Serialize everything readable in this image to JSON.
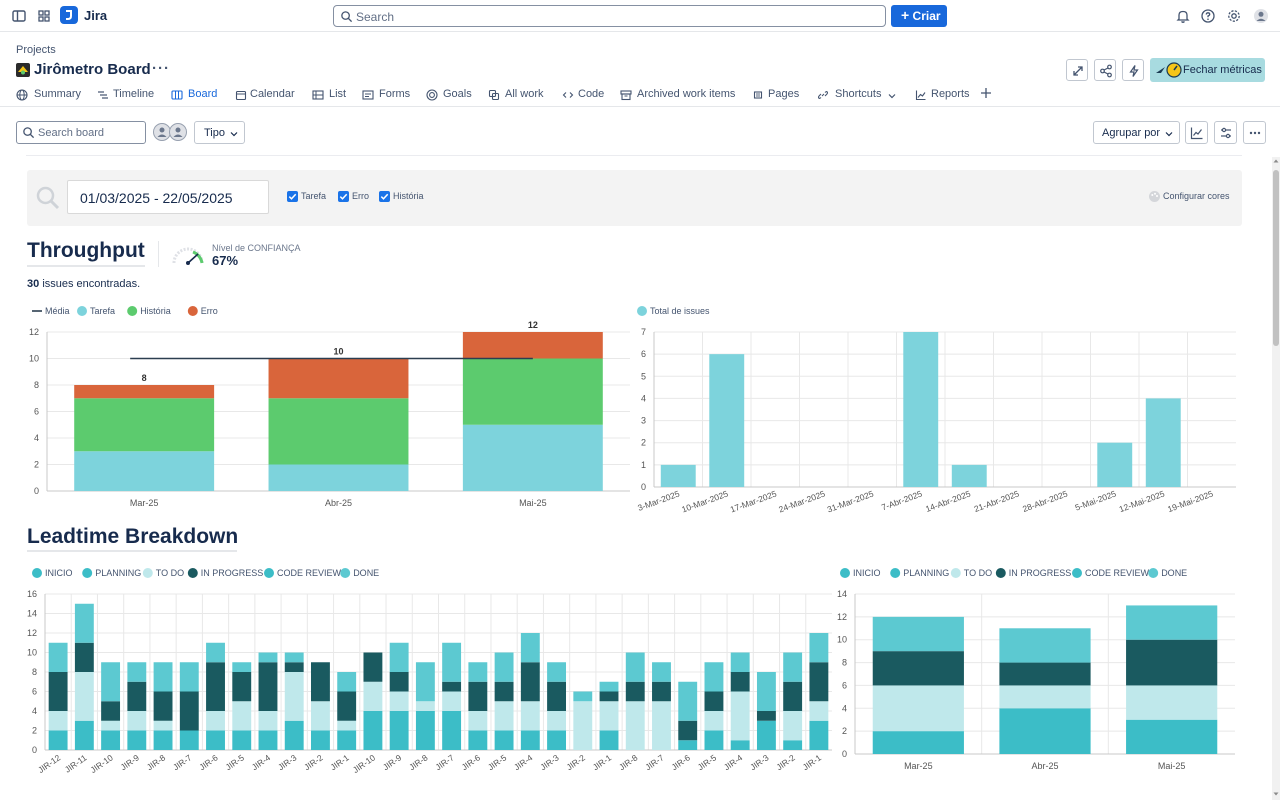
{
  "topbar": {
    "app_name": "Jira",
    "search_placeholder": "Search",
    "create_label": "Criar",
    "icons": [
      "sidebar-toggle-icon",
      "app-switcher-icon",
      "notifications-icon",
      "help-icon",
      "settings-icon",
      "profile-icon"
    ]
  },
  "project": {
    "breadcrumb": "Projects",
    "title": "Jirômetro Board",
    "more": "···",
    "fechar_label": "Fechar métricas"
  },
  "tabs": [
    {
      "label": "Summary",
      "icon": "globe-icon"
    },
    {
      "label": "Timeline",
      "icon": "timeline-icon"
    },
    {
      "label": "Board",
      "icon": "board-icon",
      "active": true
    },
    {
      "label": "Calendar",
      "icon": "calendar-icon"
    },
    {
      "label": "List",
      "icon": "list-icon"
    },
    {
      "label": "Forms",
      "icon": "forms-icon"
    },
    {
      "label": "Goals",
      "icon": "goals-icon"
    },
    {
      "label": "All work",
      "icon": "all-work-icon"
    },
    {
      "label": "Code",
      "icon": "code-icon"
    },
    {
      "label": "Archived work items",
      "icon": "archive-icon"
    },
    {
      "label": "Pages",
      "icon": "pages-icon"
    },
    {
      "label": "Shortcuts",
      "icon": "link-icon"
    },
    {
      "label": "Reports",
      "icon": "reports-icon"
    }
  ],
  "board": {
    "search_placeholder": "Search board",
    "tipo_label": "Tipo",
    "agrupar_label": "Agrupar por"
  },
  "filter": {
    "date_range": "01/03/2025 - 22/05/2025",
    "checkboxes": [
      {
        "label": "Tarefa",
        "checked": true
      },
      {
        "label": "Erro",
        "checked": true
      },
      {
        "label": "História",
        "checked": true
      }
    ],
    "configurar": "Configurar cores"
  },
  "throughput": {
    "title": "Throughput",
    "confidence_label": "Nível de CONFIANÇA",
    "confidence_value": "67%",
    "issues_count": "30",
    "issues_suffix": "issues encontradas."
  },
  "leadtime": {
    "title": "Leadtime Breakdown"
  },
  "colors": {
    "tarefa": "#7dd3dc",
    "historia": "#5ccb6e",
    "erro": "#d9653b",
    "media": "#2c3e50",
    "total": "#7dd3dc",
    "inicio": "#3cbdc7",
    "planning": "#3cbdc7",
    "todo": "#bfe8eb",
    "inprogress": "#1a5a60",
    "codereview": "#3cbdc7",
    "done": "#5cc9d1",
    "brand": "#1868db"
  },
  "chart_data": [
    {
      "type": "bar",
      "stacked": true,
      "categories": [
        "Mar-25",
        "Abr-25",
        "Mai-25"
      ],
      "series": [
        {
          "name": "Tarefa",
          "values": [
            3,
            2,
            5
          ]
        },
        {
          "name": "História",
          "values": [
            4,
            5,
            5
          ]
        },
        {
          "name": "Erro",
          "values": [
            1,
            3,
            2
          ]
        }
      ],
      "line": {
        "name": "Média",
        "value": 10
      },
      "totals": [
        8,
        10,
        12
      ],
      "ylim": [
        0,
        12
      ],
      "yticks": [
        0,
        2,
        4,
        6,
        8,
        10,
        12
      ],
      "legend": "top-left"
    },
    {
      "type": "bar",
      "categories": [
        "3-Mar-2025",
        "10-Mar-2025",
        "17-Mar-2025",
        "24-Mar-2025",
        "31-Mar-2025",
        "7-Abr-2025",
        "14-Abr-2025",
        "21-Abr-2025",
        "28-Abr-2025",
        "5-Mai-2025",
        "12-Mai-2025",
        "19-Mai-2025"
      ],
      "series": [
        {
          "name": "Total de issues",
          "values": [
            1,
            6,
            0,
            0,
            0,
            7,
            1,
            0,
            0,
            2,
            4,
            0
          ]
        }
      ],
      "ylim": [
        0,
        7
      ],
      "yticks": [
        0,
        1,
        2,
        3,
        4,
        5,
        6,
        7
      ],
      "legend": "top-left"
    },
    {
      "type": "bar",
      "stacked": true,
      "legend_items": [
        "INICIO",
        "PLANNING",
        "TO DO",
        "IN PROGRESS",
        "CODE REVIEW",
        "DONE"
      ],
      "categories": [
        "JIR-12",
        "JIR-11",
        "JIR-10",
        "JIR-9",
        "JIR-8",
        "JIR-7",
        "JIR-6",
        "JIR-5",
        "JIR-4",
        "JIR-3",
        "JIR-2",
        "JIR-1",
        "JIR-10",
        "JIR-9",
        "JIR-8",
        "JIR-7",
        "JIR-6",
        "JIR-5",
        "JIR-4",
        "JIR-3",
        "JIR-2",
        "JIR-1",
        "JIR-8",
        "JIR-7",
        "JIR-6",
        "JIR-5",
        "JIR-4",
        "JIR-3",
        "JIR-2",
        "JIR-1"
      ],
      "series": [
        {
          "name": "INICIO",
          "values": [
            2,
            3,
            2,
            2,
            2,
            2,
            2,
            2,
            2,
            3,
            2,
            2,
            4,
            4,
            4,
            4,
            2,
            2,
            2,
            2,
            0,
            2,
            0,
            0,
            1,
            2,
            1,
            3,
            1,
            3
          ]
        },
        {
          "name": "TO DO",
          "values": [
            2,
            5,
            1,
            2,
            1,
            0,
            2,
            3,
            2,
            5,
            3,
            1,
            3,
            2,
            1,
            2,
            2,
            3,
            3,
            2,
            5,
            3,
            5,
            5,
            0,
            2,
            5,
            0,
            3,
            2
          ]
        },
        {
          "name": "IN PROGRESS",
          "values": [
            4,
            3,
            2,
            3,
            3,
            4,
            5,
            3,
            5,
            1,
            4,
            3,
            3,
            2,
            0,
            1,
            3,
            2,
            4,
            3,
            0,
            1,
            2,
            2,
            2,
            2,
            2,
            1,
            3,
            4
          ]
        },
        {
          "name": "DONE",
          "values": [
            3,
            4,
            4,
            2,
            3,
            3,
            2,
            1,
            1,
            1,
            0,
            2,
            0,
            3,
            4,
            4,
            2,
            3,
            3,
            2,
            1,
            1,
            3,
            2,
            4,
            3,
            2,
            4,
            3,
            3
          ]
        }
      ],
      "ylim": [
        0,
        16
      ],
      "yticks": [
        0,
        2,
        4,
        6,
        8,
        10,
        12,
        14,
        16
      ],
      "legend": "top-left"
    },
    {
      "type": "bar",
      "stacked": true,
      "legend_items": [
        "INICIO",
        "PLANNING",
        "TO DO",
        "IN PROGRESS",
        "CODE REVIEW",
        "DONE"
      ],
      "categories": [
        "Mar-25",
        "Abr-25",
        "Mai-25"
      ],
      "series": [
        {
          "name": "INICIO",
          "values": [
            2,
            4,
            3
          ]
        },
        {
          "name": "TO DO",
          "values": [
            4,
            2,
            3
          ]
        },
        {
          "name": "IN PROGRESS",
          "values": [
            3,
            2,
            4
          ]
        },
        {
          "name": "DONE",
          "values": [
            3,
            3,
            3
          ]
        }
      ],
      "ylim": [
        0,
        14
      ],
      "yticks": [
        0,
        2,
        4,
        6,
        8,
        10,
        12,
        14
      ],
      "legend": "top-left"
    }
  ]
}
